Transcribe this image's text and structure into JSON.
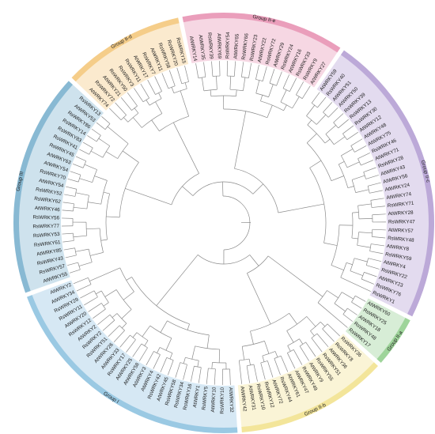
{
  "tree": {
    "type": "circular-phylogenetic-tree",
    "groups": [
      {
        "label": "Group III",
        "color": "#4f97bd",
        "leaves": [
          "AtWRKY55",
          "RsWRKY57",
          "RsWRKY43",
          "AtWRKY85",
          "RsWRKY61",
          "RsWRKY53",
          "RsWRKY77",
          "RsWRKY56",
          "AtWRKY46",
          "RsWRKY62",
          "RsWRKY52",
          "AtWRKY54",
          "RsWRKY70",
          "AtWRKY54",
          "AtWRKY63",
          "RsWRKY45",
          "RsWRKY41",
          "RsWRKY83",
          "RsWRKY14",
          "RsWRKY86",
          "AtWRKY53",
          "RsWRKY13"
        ]
      },
      {
        "label": "Group II-d",
        "color": "#f0b450",
        "leaves": [
          "AtWRKY74",
          "RsWRKY72",
          "AtWRKY21",
          "RsWRKY50",
          "RsWRKY3",
          "RsWRKY11",
          "AtWRKY17",
          "RsWRKY7",
          "AtWRKY11",
          "RsWRKY58",
          "RsWRKY20",
          "RsWRKY15"
        ]
      },
      {
        "label": "Group II-e",
        "color": "#e0709a",
        "leaves": [
          "AtWRKY14",
          "AtWRKY35",
          "RsWRKY39",
          "AtWRKY69",
          "RsWRKY54",
          "AtWRKY65",
          "RsWRKY66",
          "RsWRKY23",
          "AtWRKY22",
          "RsWRKY72",
          "AtWRKY29",
          "RsWRKY24",
          "AtWRKY16",
          "RsWRKY33",
          "RsWRKY9",
          "AtWRKY27"
        ]
      },
      {
        "label": "Group II-c",
        "color": "#9c7fc4",
        "leaves": [
          "AtWRKY59",
          "RsWRKY40",
          "AtWRKY51",
          "AtWRKY50",
          "RsWRKY39",
          "RsWRKY13",
          "RsWRKY30",
          "AtWRKY12",
          "AtWRKY48",
          "AtWRKY75",
          "RsWRKY46",
          "AtWRKY71",
          "RsWRKY28",
          "AtWRKY43",
          "AtWRKY56",
          "AtWRKY24",
          "AtWRKY74",
          "RsWRKY71",
          "AtWRKY28",
          "RsWRKY47",
          "AtWRKY57",
          "RsWRKY48",
          "AtWRKY8",
          "RsWRKY59",
          "AtWRKY4",
          "RsWRKY22",
          "AtWRKY23",
          "RsWRKY76",
          "RsWRKY1"
        ]
      },
      {
        "label": "Group II-a",
        "color": "#6fbf6a",
        "leaves": [
          "AtWRKY60",
          "RsWRKY25",
          "AtWRKY18",
          "RsWRKY48",
          "RsWRKY17"
        ]
      },
      {
        "label": "Group II-b",
        "color": "#ecd86a",
        "leaves": [
          "RsWRKY36",
          "RsWRKY8",
          "AtWRKY36",
          "RsWRKY51",
          "RsWRKY55",
          "AtWRKY9",
          "RsWRKY49",
          "AtWRKY47",
          "AtWRKY61",
          "RsWRKY44",
          "AtWRKY72",
          "RsWRKY12",
          "RsWRKY10",
          "AtWRKY31",
          "AtWRKY42"
        ]
      },
      {
        "label": "Group I",
        "color": "#6aaed6",
        "leaves": [
          "AtWRKY32",
          "RsWRKY10",
          "AtWRKY10",
          "RsWRKY5",
          "AtWRKY1",
          "RsWRKY16",
          "RsWRKY34",
          "RsWRKY58",
          "AtWRKY45",
          "RsWRKY42",
          "AtWRKY4",
          "AtWRKY3",
          "AtWRKY58",
          "AtWRKY25",
          "RsWRKY17",
          "AtWRKY33",
          "AtWRKY26",
          "RsWRKY51",
          "RsWRKY2",
          "AtWRKY2",
          "RsWRKY12",
          "AtWRKY20",
          "RsWRKY11",
          "RsWRKY29",
          "AtWRKY34",
          "AtWRKY2"
        ]
      }
    ]
  }
}
